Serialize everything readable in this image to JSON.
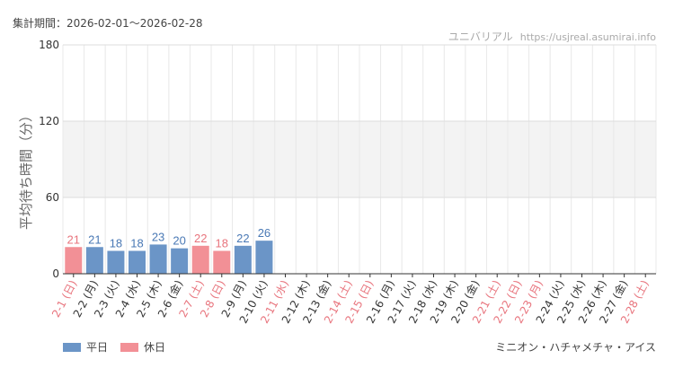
{
  "header": {
    "period": "集計期間：2026-02-01～2026-02-28",
    "site_name": "ユニバリアル",
    "site_url": "https://usjreal.asumirai.info"
  },
  "footer": {
    "attraction": "ミニオン・ハチャメチャ・アイス"
  },
  "colors": {
    "weekday": "#6b95c7",
    "holiday": "#f29096",
    "weekday_label": "#4a79b5",
    "holiday_label": "#e8747d",
    "weekday_tick": "#333333",
    "holiday_tick": "#e8747d"
  },
  "chart_data": {
    "type": "bar",
    "ylabel": "平均待ち時間（分）",
    "ylim": [
      0,
      180
    ],
    "yticks": [
      0,
      60,
      120,
      180
    ],
    "grid": true,
    "legend_position": "bottom-left",
    "shaded_band": [
      60,
      120
    ],
    "categories": [
      "2-1 (日)",
      "2-2 (月)",
      "2-3 (火)",
      "2-4 (水)",
      "2-5 (木)",
      "2-6 (金)",
      "2-7 (土)",
      "2-8 (日)",
      "2-9 (月)",
      "2-10 (火)",
      "2-11 (水)",
      "2-12 (木)",
      "2-13 (金)",
      "2-14 (土)",
      "2-15 (日)",
      "2-16 (月)",
      "2-17 (火)",
      "2-18 (水)",
      "2-19 (木)",
      "2-20 (金)",
      "2-21 (土)",
      "2-22 (日)",
      "2-23 (月)",
      "2-24 (火)",
      "2-25 (水)",
      "2-26 (木)",
      "2-27 (金)",
      "2-28 (土)"
    ],
    "values": [
      21,
      21,
      18,
      18,
      23,
      20,
      22,
      18,
      22,
      26,
      null,
      null,
      null,
      null,
      null,
      null,
      null,
      null,
      null,
      null,
      null,
      null,
      null,
      null,
      null,
      null,
      null,
      null
    ],
    "holiday": [
      true,
      false,
      false,
      false,
      false,
      false,
      true,
      true,
      false,
      false,
      true,
      false,
      false,
      true,
      true,
      false,
      false,
      false,
      false,
      false,
      true,
      true,
      true,
      false,
      false,
      false,
      false,
      true
    ],
    "legend": [
      {
        "label": "平日",
        "kind": "weekday"
      },
      {
        "label": "休日",
        "kind": "holiday"
      }
    ]
  }
}
